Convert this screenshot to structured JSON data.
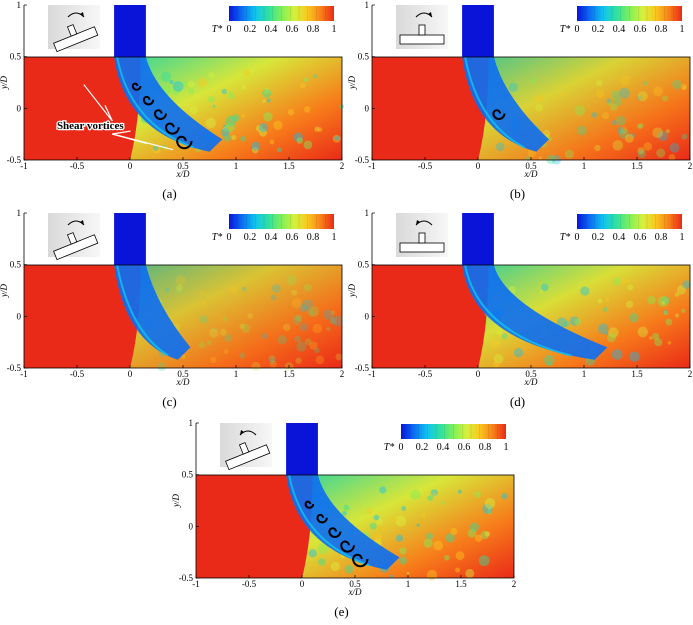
{
  "colorbar": {
    "label": "T*",
    "ticks": [
      "0",
      "0.2",
      "0.4",
      "0.6",
      "0.8",
      "1"
    ],
    "colors": [
      "#0a14d9",
      "#0b6ef3",
      "#10c4ef",
      "#2fe0a0",
      "#7ef05a",
      "#d6f03b",
      "#f9c81f",
      "#f8801a",
      "#ea2a18"
    ]
  },
  "axes": {
    "xlabel": "x/D",
    "ylabel": "y/D",
    "xticks": [
      "-1",
      "-0.5",
      "0",
      "0.5",
      "1",
      "1.5",
      "2"
    ],
    "yticks": [
      "1",
      "0.5",
      "0",
      "-0.5"
    ]
  },
  "panels": [
    {
      "id": "a",
      "caption": "(a)",
      "annotation": "Shear vortices",
      "rotation": "clockwise",
      "pose": "tilted"
    },
    {
      "id": "b",
      "caption": "(b)",
      "annotation": "",
      "rotation": "clockwise",
      "pose": "level"
    },
    {
      "id": "c",
      "caption": "(c)",
      "annotation": "",
      "rotation": "clockwise",
      "pose": "tilted"
    },
    {
      "id": "d",
      "caption": "(d)",
      "annotation": "",
      "rotation": "counterclockwise",
      "pose": "level"
    },
    {
      "id": "e",
      "caption": "(e)",
      "annotation": "",
      "rotation": "counterclockwise",
      "pose": "tilted"
    }
  ]
}
